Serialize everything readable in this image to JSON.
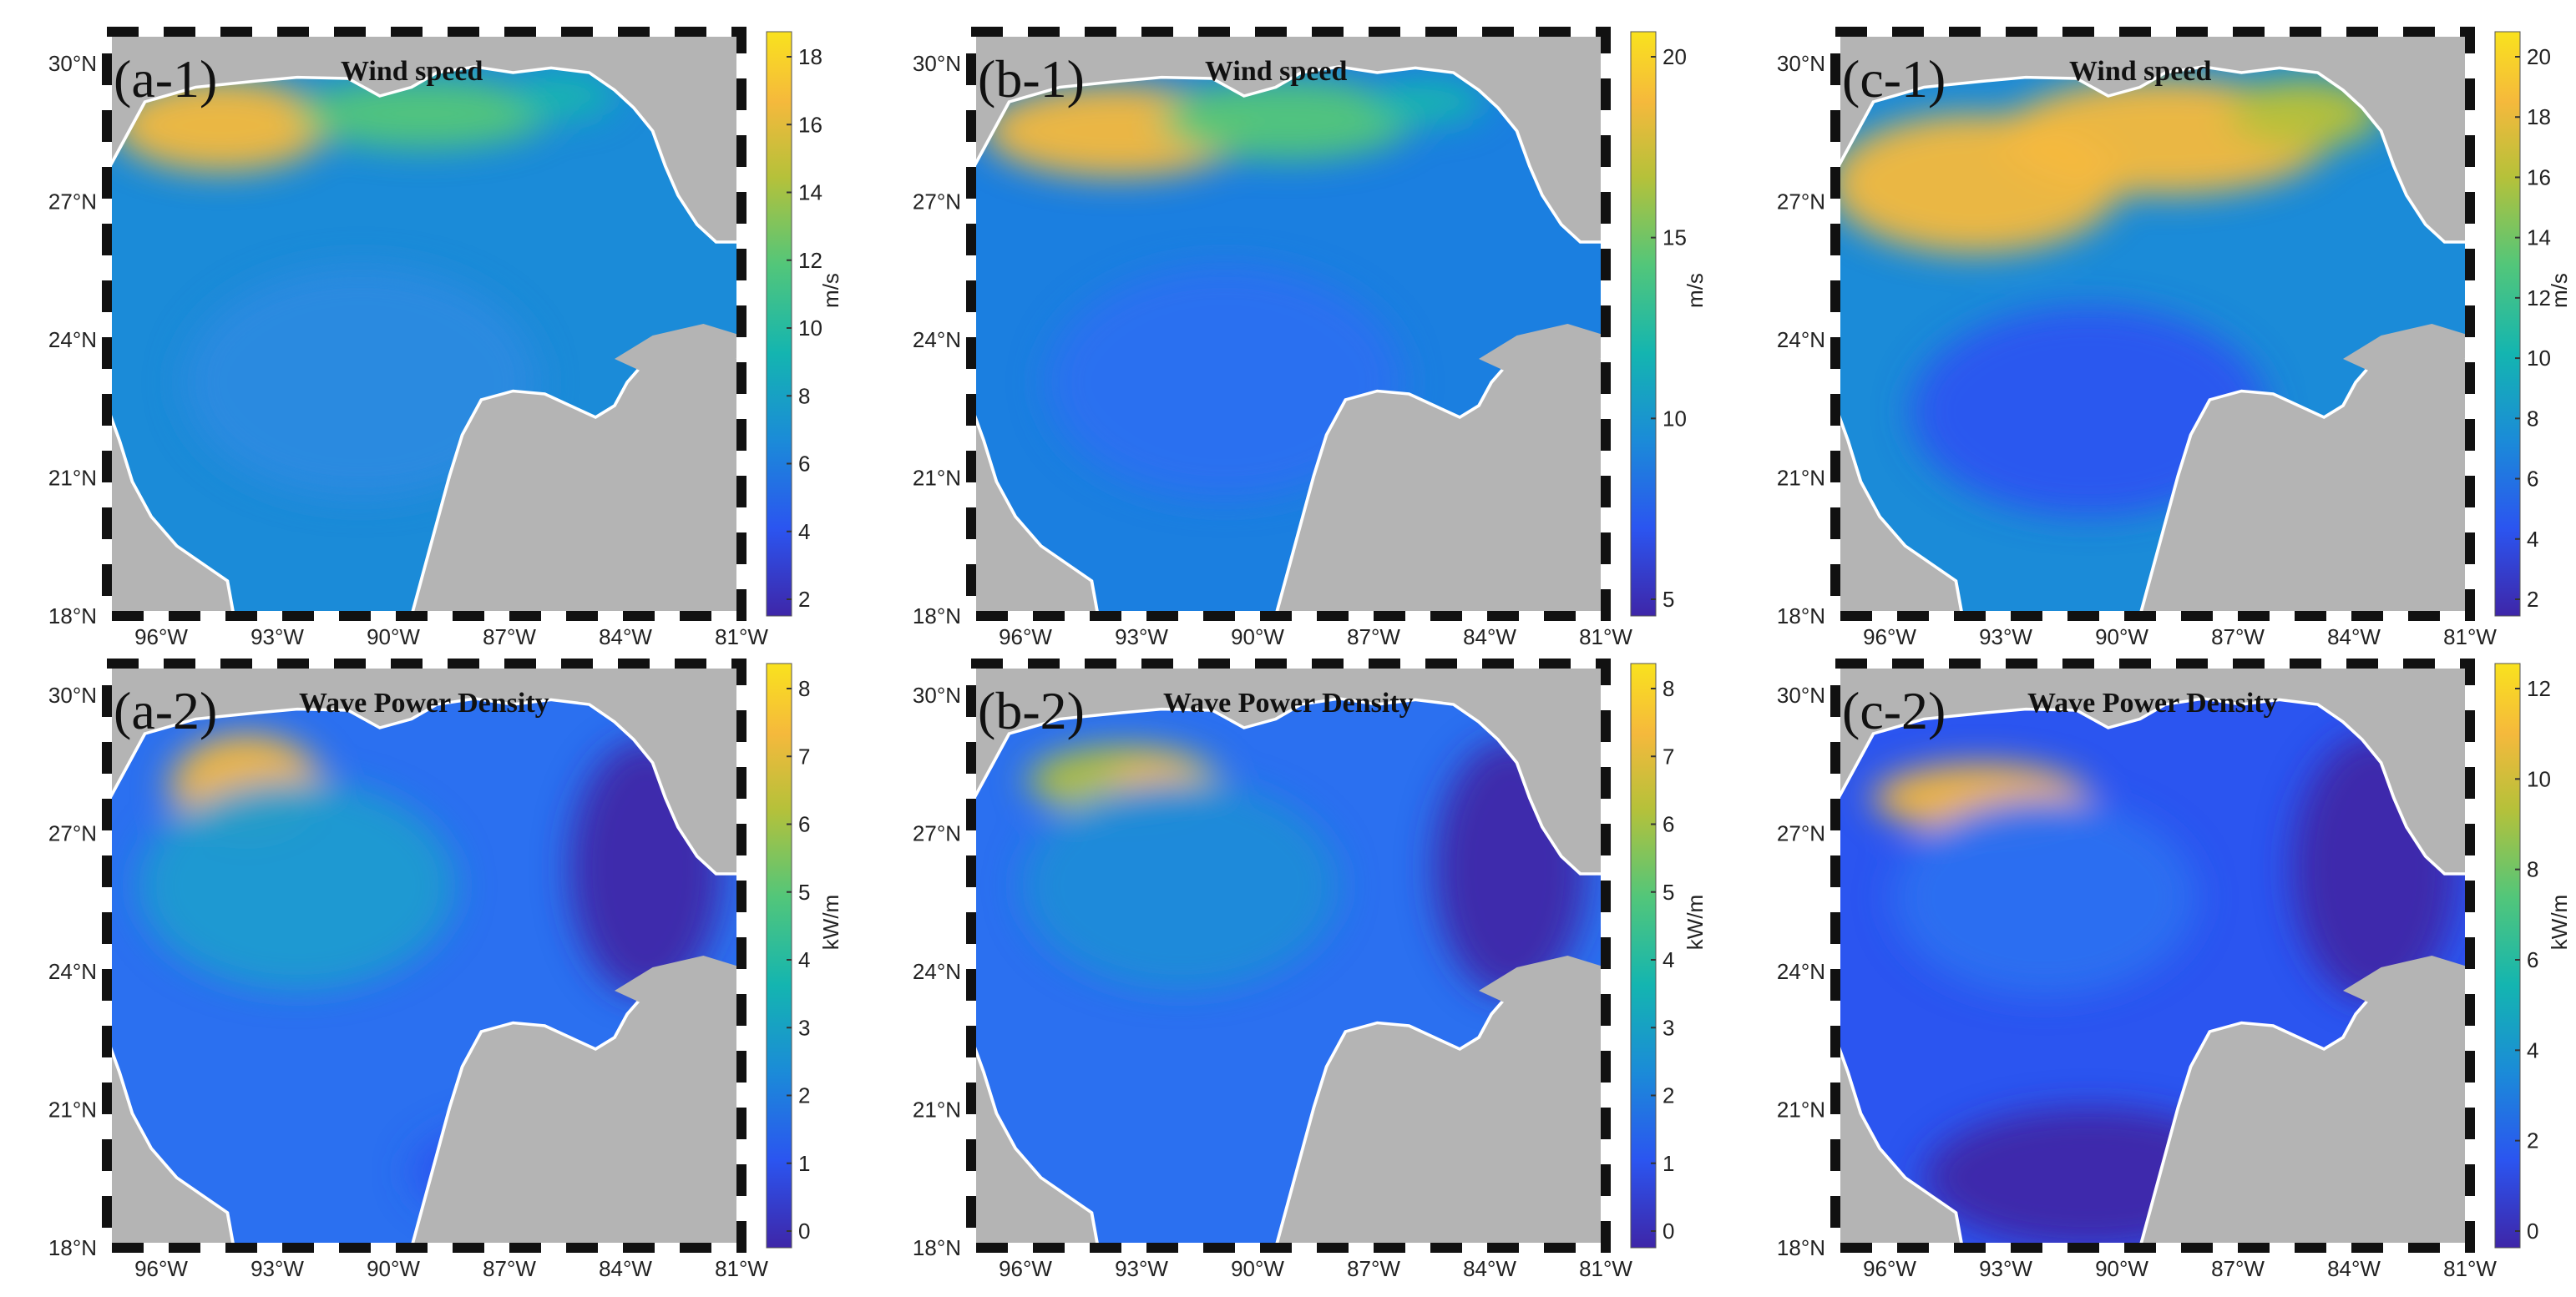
{
  "figure": {
    "lat_ticks": [
      "30°N",
      "27°N",
      "24°N",
      "21°N",
      "18°N"
    ],
    "lon_ticks": [
      "96°W",
      "93°W",
      "90°W",
      "87°W",
      "84°W",
      "81°W"
    ],
    "colors": {
      "land": "#b4b4b4",
      "frame_dash": "#111111",
      "colormap": [
        "#3e26a8",
        "#2b55f0",
        "#1b8bd8",
        "#14b5b0",
        "#52c67a",
        "#b5c13a",
        "#f5b93c",
        "#f9e21e"
      ]
    }
  },
  "panels": [
    {
      "id": "a1",
      "label": "(a-1)",
      "title": "Wind speed",
      "unit": "m/s",
      "cb_ticks": [
        "18",
        "16",
        "14",
        "12",
        "10",
        "8",
        "6",
        "4",
        "2"
      ]
    },
    {
      "id": "b1",
      "label": "(b-1)",
      "title": "Wind speed",
      "unit": "m/s",
      "cb_ticks": [
        "20",
        "15",
        "10",
        "5"
      ]
    },
    {
      "id": "c1",
      "label": "(c-1)",
      "title": "Wind speed",
      "unit": "m/s",
      "cb_ticks": [
        "20",
        "18",
        "16",
        "14",
        "12",
        "10",
        "8",
        "6",
        "4",
        "2"
      ]
    },
    {
      "id": "a2",
      "label": "(a-2)",
      "title": "Wave Power Density",
      "unit": "kW/m",
      "cb_ticks": [
        "8",
        "7",
        "6",
        "5",
        "4",
        "3",
        "2",
        "1",
        "0"
      ]
    },
    {
      "id": "b2",
      "label": "(b-2)",
      "title": "Wave Power Density",
      "unit": "kW/m",
      "cb_ticks": [
        "8",
        "7",
        "6",
        "5",
        "4",
        "3",
        "2",
        "1",
        "0"
      ]
    },
    {
      "id": "c2",
      "label": "(c-2)",
      "title": "Wave Power Density",
      "unit": "kW/m",
      "cb_ticks": [
        "12",
        "10",
        "8",
        "6",
        "4",
        "2",
        "0"
      ]
    }
  ]
}
